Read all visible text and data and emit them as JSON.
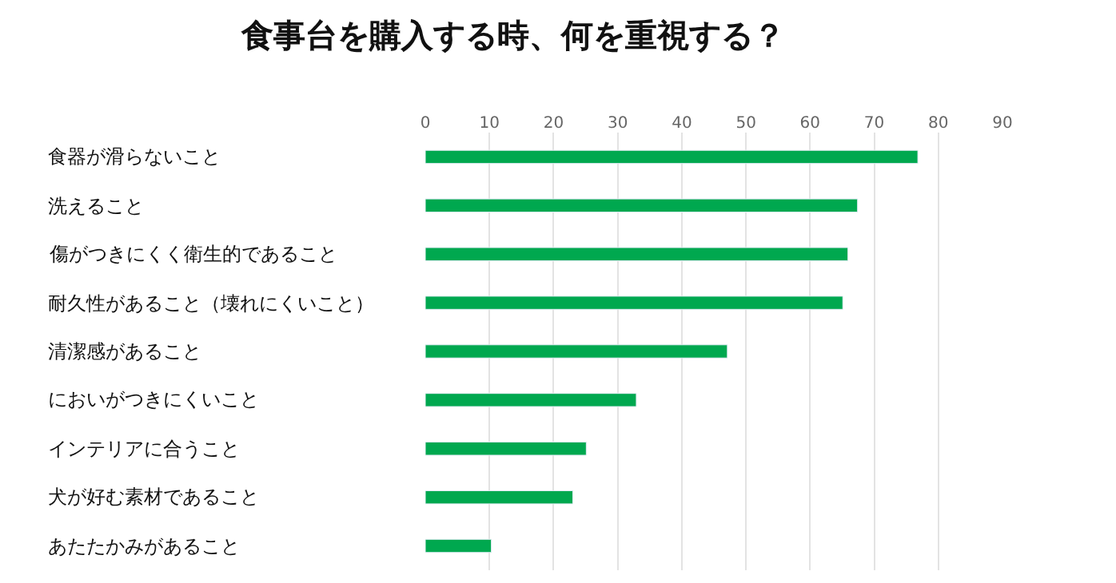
{
  "chart_data": {
    "type": "bar",
    "orientation": "horizontal",
    "title": "食事台を購入する時、何を重視する？",
    "categories": [
      "食器が滑らないこと",
      "洗えること",
      "傷がつきにくく衛生的であること",
      "耐久性があること（壊れにくいこと）",
      "清潔感があること",
      "においがつきにくいこと",
      "インテリアに合うこと",
      "犬が好む素材であること",
      "あたたかみがあること"
    ],
    "values": [
      76.8,
      67.4,
      65.9,
      65.1,
      47.1,
      32.9,
      25.1,
      23.0,
      10.3
    ],
    "color": "#00a84f",
    "xlim": [
      0,
      90
    ],
    "xticks": [
      0,
      10,
      20,
      30,
      40,
      50,
      60,
      70,
      80,
      90
    ],
    "grid": "x"
  }
}
